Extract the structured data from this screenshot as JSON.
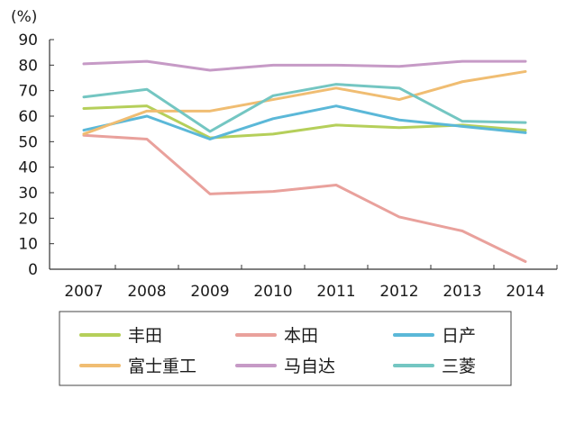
{
  "chart_data": {
    "type": "line",
    "ylabel": "(%)",
    "x": [
      "2007",
      "2008",
      "2009",
      "2010",
      "2011",
      "2012",
      "2013",
      "2014"
    ],
    "ylim": [
      0,
      90
    ],
    "yticks": [
      0,
      10,
      20,
      30,
      40,
      50,
      60,
      70,
      80,
      90
    ],
    "grid": false,
    "legend_position": "bottom",
    "series": [
      {
        "name": "丰田",
        "color": "#b5cf5a",
        "values": [
          63,
          64,
          51.5,
          53,
          56.5,
          55.5,
          56.5,
          54.5
        ]
      },
      {
        "name": "本田",
        "color": "#e9a19c",
        "values": [
          52.5,
          51,
          29.5,
          30.5,
          33,
          20.5,
          15,
          3
        ]
      },
      {
        "name": "日产",
        "color": "#5bb8d8",
        "values": [
          54.5,
          60,
          51,
          59,
          64,
          58.5,
          56,
          53.5
        ]
      },
      {
        "name": "富士重工",
        "color": "#f0bd72",
        "values": [
          53,
          62,
          62,
          66.5,
          71,
          66.5,
          73.5,
          77.5
        ]
      },
      {
        "name": "马自达",
        "color": "#c69ac6",
        "values": [
          80.5,
          81.5,
          78,
          80,
          80,
          79.5,
          81.5,
          81.5
        ]
      },
      {
        "name": "三菱",
        "color": "#74c6c2",
        "values": [
          67.5,
          70.5,
          54,
          68,
          72.5,
          71,
          58,
          57.5
        ]
      }
    ]
  }
}
